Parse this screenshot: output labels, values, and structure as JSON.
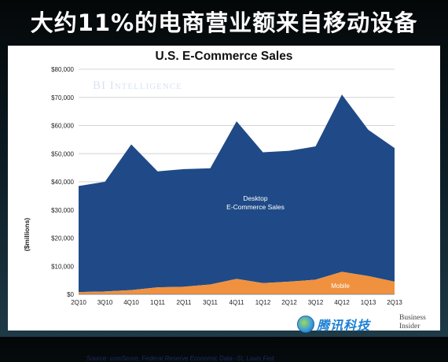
{
  "headline": "大约11%的电商营业额来自移动设备",
  "brand_watermark": "BI Intelligence",
  "source": "Source: comScore, Federal Reserve Economic Data--St. Louis Fed",
  "tencent_logo_text": "腾讯科技",
  "business_insider_logo": [
    "Business",
    "Insider"
  ],
  "colors": {
    "desktop": "#1f4a87",
    "mobile": "#f0913f",
    "grid": "#d4d4d4",
    "headline": "#ffffff"
  },
  "chart_data": {
    "type": "area",
    "stacked": true,
    "title": "U.S. E-Commerce Sales",
    "xlabel": "",
    "ylabel": "($millions)",
    "ylim": [
      0,
      80000
    ],
    "yticks": [
      0,
      10000,
      20000,
      30000,
      40000,
      50000,
      60000,
      70000,
      80000
    ],
    "ytick_labels": [
      "$0",
      "$10,000",
      "$20,000",
      "$30,000",
      "$40,000",
      "$50,000",
      "$60,000",
      "$70,000",
      "$80,000"
    ],
    "categories": [
      "2Q10",
      "3Q10",
      "4Q10",
      "1Q11",
      "2Q11",
      "3Q11",
      "4Q11",
      "1Q12",
      "2Q12",
      "3Q12",
      "4Q12",
      "1Q13",
      "2Q13"
    ],
    "series": [
      {
        "name": "Mobile",
        "values": [
          800,
          1000,
          1500,
          2500,
          2700,
          3500,
          5500,
          4000,
          4500,
          5200,
          8000,
          6500,
          4500
        ]
      },
      {
        "name": "Desktop E-Commerce Sales",
        "values": [
          37700,
          39000,
          51800,
          41200,
          41800,
          41300,
          56000,
          46500,
          46500,
          47400,
          63000,
          52000,
          47500
        ]
      }
    ],
    "grid": true,
    "legend": "inline labels"
  }
}
